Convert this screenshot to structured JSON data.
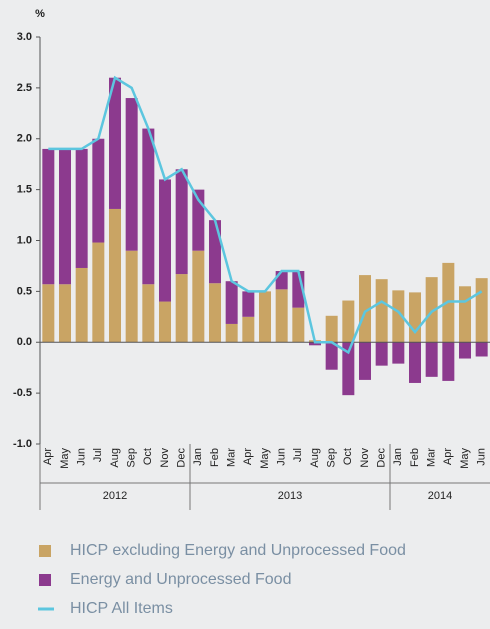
{
  "chart_data": {
    "type": "stacked_bar_line",
    "y_unit": "%",
    "categories": [
      "Apr",
      "May",
      "Jun",
      "Jul",
      "Aug",
      "Sep",
      "Oct",
      "Nov",
      "Dec",
      "Jan",
      "Feb",
      "Mar",
      "Apr",
      "May",
      "Jun",
      "Jul",
      "Aug",
      "Sep",
      "Oct",
      "Nov",
      "Dec",
      "Jan",
      "Feb",
      "Mar",
      "Apr",
      "May",
      "Jun"
    ],
    "category_groups": [
      {
        "label": "2012",
        "size": 9
      },
      {
        "label": "2013",
        "size": 12
      },
      {
        "label": "2014",
        "size": 6
      }
    ],
    "series": [
      {
        "name": "HICP excluding Energy and Unprocessed Food",
        "color": "#c9a464",
        "kind": "bar",
        "values": [
          0.57,
          0.57,
          0.73,
          0.98,
          1.31,
          0.9,
          0.57,
          0.4,
          0.67,
          0.9,
          0.58,
          0.18,
          0.25,
          0.5,
          0.52,
          0.34,
          0.02,
          0.26,
          0.41,
          0.66,
          0.62,
          0.51,
          0.49,
          0.64,
          0.78,
          0.55,
          0.63
        ]
      },
      {
        "name": "Energy and Unprocessed Food",
        "color": "#8c3a8e",
        "kind": "bar",
        "values": [
          1.33,
          1.33,
          1.17,
          1.02,
          1.29,
          1.5,
          1.53,
          1.2,
          1.03,
          0.6,
          0.62,
          0.42,
          0.25,
          0,
          0.18,
          0.36,
          -0.03,
          -0.27,
          -0.52,
          -0.37,
          -0.23,
          -0.21,
          -0.4,
          -0.34,
          -0.38,
          -0.16,
          -0.14
        ]
      },
      {
        "name": "HICP All Items",
        "color": "#5cc6df",
        "kind": "line",
        "values": [
          1.9,
          1.9,
          1.9,
          2.0,
          2.6,
          2.5,
          2.1,
          1.6,
          1.7,
          1.4,
          1.2,
          0.6,
          0.5,
          0.5,
          0.7,
          0.7,
          0.0,
          0.0,
          -0.1,
          0.3,
          0.4,
          0.3,
          0.1,
          0.3,
          0.4,
          0.4,
          0.5
        ]
      }
    ],
    "ylim": [
      -1.0,
      3.0
    ],
    "yticks": [
      {
        "value": -1.0,
        "label": "-1.0"
      },
      -0.5,
      {
        "value": 0.0,
        "label": "0.0"
      },
      0.5,
      {
        "value": 1.0,
        "label": "1.0"
      },
      1.5,
      {
        "value": 2.0,
        "label": "2.0"
      },
      2.5,
      {
        "value": 3.0,
        "label": "3.0"
      }
    ],
    "grid": false
  }
}
